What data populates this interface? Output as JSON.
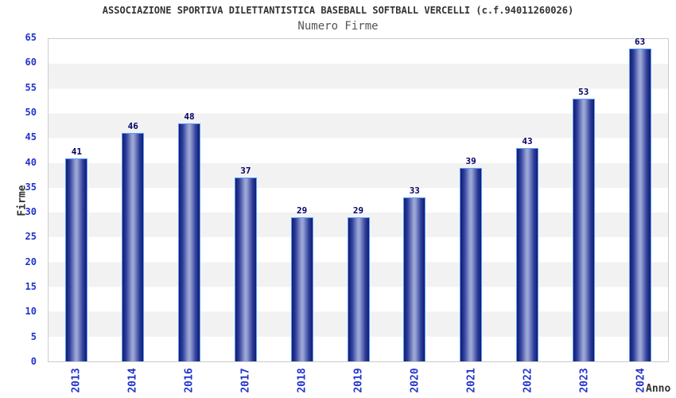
{
  "header": {
    "title": "ASSOCIAZIONE SPORTIVA DILETTANTISTICA BASEBALL SOFTBALL VERCELLI (c.f.94011260026)",
    "subtitle": "Numero Firme"
  },
  "axes": {
    "ylabel": "Firme",
    "xlabel": "Anno"
  },
  "chart_data": {
    "type": "bar",
    "title": "ASSOCIAZIONE SPORTIVA DILETTANTISTICA BASEBALL SOFTBALL VERCELLI (c.f.94011260026)",
    "subtitle": "Numero Firme",
    "categories": [
      "2013",
      "2014",
      "2016",
      "2017",
      "2018",
      "2019",
      "2020",
      "2021",
      "2022",
      "2023",
      "2024"
    ],
    "values": [
      41,
      46,
      48,
      37,
      29,
      29,
      33,
      39,
      43,
      53,
      63
    ],
    "xlabel": "Anno",
    "ylabel": "Firme",
    "ylim": [
      0,
      65
    ],
    "ytick_step": 5,
    "yticks": [
      0,
      5,
      10,
      15,
      20,
      25,
      30,
      35,
      40,
      45,
      50,
      55,
      60,
      65
    ],
    "legend": "none",
    "grid": "alternating horizontal bands every 5 units",
    "bar_labels_shown": true
  },
  "colors": {
    "title_color": "#333333",
    "subtitle_color": "#555555",
    "tick_blue": "#2233cc",
    "value_navy": "#000066",
    "band_gray": "#f2f2f2",
    "plot_border": "#cccccc",
    "bar_dark": "#111c6e",
    "bar_mid": "#2e3f9c",
    "bar_light": "#9aa5d4",
    "bar_border": "#5c9dff"
  }
}
